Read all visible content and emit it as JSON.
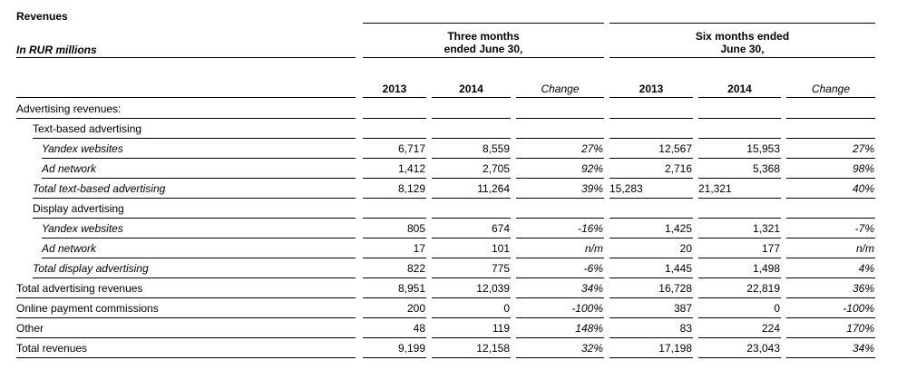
{
  "title": "Revenues",
  "units": "In RUR millions",
  "groups": {
    "three_months": "Three months\nended June 30,",
    "six_months": "Six months ended\nJune 30,"
  },
  "columns": [
    "2013",
    "2014",
    "Change",
    "2013",
    "2014",
    "Change"
  ],
  "rows": [
    {
      "label": "Advertising revenues:",
      "style": "plain",
      "indent": 0,
      "values": [
        "",
        "",
        "",
        "",
        "",
        ""
      ]
    },
    {
      "label": "Text-based advertising",
      "style": "plain",
      "indent": 1,
      "values": [
        "",
        "",
        "",
        "",
        "",
        ""
      ]
    },
    {
      "label": "Yandex websites",
      "style": "italic",
      "indent": 2,
      "values": [
        "6,717",
        "8,559",
        "27%",
        "12,567",
        "15,953",
        "27%"
      ]
    },
    {
      "label": "Ad network",
      "style": "italic",
      "indent": 2,
      "values": [
        "1,412",
        "2,705",
        "92%",
        "2,716",
        "5,368",
        "98%"
      ]
    },
    {
      "label": "Total text-based advertising",
      "style": "italic",
      "indent": 1,
      "values": [
        "8,129",
        "11,264",
        "39%",
        "15,283",
        "21,321",
        "40%"
      ]
    },
    {
      "label": "Display advertising",
      "style": "plain",
      "indent": 1,
      "values": [
        "",
        "",
        "",
        "",
        "",
        ""
      ]
    },
    {
      "label": "Yandex websites",
      "style": "italic",
      "indent": 2,
      "values": [
        "805",
        "674",
        "-16%",
        "1,425",
        "1,321",
        "-7%"
      ]
    },
    {
      "label": "Ad network",
      "style": "italic",
      "indent": 2,
      "values": [
        "17",
        "101",
        "n/m",
        "20",
        "177",
        "n/m"
      ]
    },
    {
      "label": "Total display advertising",
      "style": "italic",
      "indent": 1,
      "values": [
        "822",
        "775",
        "-6%",
        "1,445",
        "1,498",
        "4%"
      ]
    },
    {
      "label": "Total advertising revenues",
      "style": "plain",
      "indent": 0,
      "values": [
        "8,951",
        "12,039",
        "34%",
        "16,728",
        "22,819",
        "36%"
      ]
    },
    {
      "label": "Online payment commissions",
      "style": "plain",
      "indent": 0,
      "values": [
        "200",
        "0",
        "-100%",
        "387",
        "0",
        "-100%"
      ]
    },
    {
      "label": "Other",
      "style": "plain",
      "indent": 0,
      "values": [
        "48",
        "119",
        "148%",
        "83",
        "224",
        "170%"
      ]
    },
    {
      "label": "Total revenues",
      "style": "plain",
      "indent": 0,
      "values": [
        "9,199",
        "12,158",
        "32%",
        "17,198",
        "23,043",
        "34%"
      ]
    }
  ]
}
